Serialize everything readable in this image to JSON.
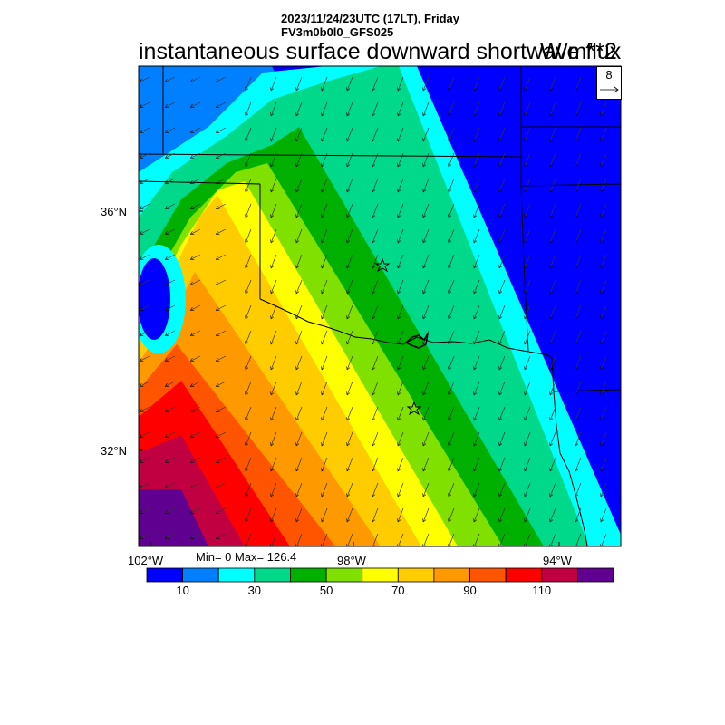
{
  "header": {
    "datetime": "2023/11/24/23UTC (17LT), Friday",
    "model": "FV3m0b0l0_GFS025",
    "title": "instantaneous surface downward shortwave flux",
    "units": "W/m**2"
  },
  "map": {
    "lat_labels": [
      "36°N",
      "32°N"
    ],
    "lon_labels": [
      "102°W",
      "98°W",
      "94°W"
    ],
    "stats": "Min= 0 Max= 126.4",
    "wind_ref": {
      "value": "8",
      "icon": "arrow-right-icon"
    },
    "station_markers": [
      "star-icon",
      "star-icon"
    ]
  },
  "colorbar": {
    "colors": [
      "#0000ff",
      "#0080ff",
      "#00ffff",
      "#00d88a",
      "#00b000",
      "#80e000",
      "#ffff00",
      "#ffcc00",
      "#ff9900",
      "#ff5500",
      "#ff0000",
      "#c00040",
      "#600090"
    ],
    "labels": [
      {
        "text": "10",
        "boundary": 1
      },
      {
        "text": "30",
        "boundary": 3
      },
      {
        "text": "50",
        "boundary": 5
      },
      {
        "text": "70",
        "boundary": 7
      },
      {
        "text": "90",
        "boundary": 9
      },
      {
        "text": "110",
        "boundary": 11
      }
    ]
  }
}
